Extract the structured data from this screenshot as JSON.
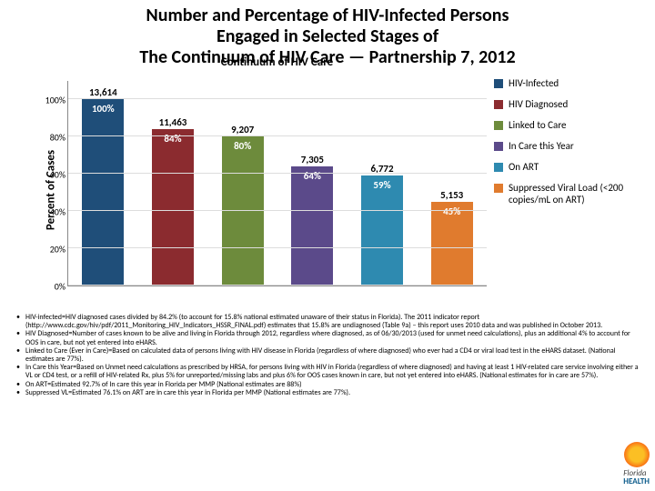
{
  "title_line1": "Number and Percentage of HIV-Infected Persons",
  "title_line2": "Engaged in Selected Stages of",
  "title_line3": "The Continuum of HIV Care — Partnership 7, 2012",
  "title_fontsize": 20,
  "yaxis_label": "Percent of Cases",
  "xaxis_label": "Continuum of HIV Care",
  "axis_label_fontsize": 13,
  "ylim": [
    0,
    110
  ],
  "ytick_positions": [
    0,
    20,
    40,
    60,
    80,
    100
  ],
  "ytick_labels": [
    "0%",
    "20%",
    "40%",
    "60%",
    "80%",
    "100%"
  ],
  "tick_fontsize": 10,
  "grid_color": "#dddddd",
  "background_color": "#ffffff",
  "bars": [
    {
      "value_label": "13,614",
      "pct_label": "100%",
      "pct": 100,
      "color": "#1f4e79"
    },
    {
      "value_label": "11,463",
      "pct_label": "84%",
      "pct": 84,
      "color": "#8b2b2f"
    },
    {
      "value_label": "9,207",
      "pct_label": "80%",
      "pct": 80,
      "color": "#6d8b3c"
    },
    {
      "value_label": "7,305",
      "pct_label": "64%",
      "pct": 64,
      "color": "#5b4a8a"
    },
    {
      "value_label": "6,772",
      "pct_label": "59%",
      "pct": 59,
      "color": "#2e8ab0"
    },
    {
      "value_label": "5,153",
      "pct_label": "45%",
      "pct": 45,
      "color": "#e07b2e"
    }
  ],
  "bar_value_fontsize": 11,
  "bar_tag_fontsize": 11,
  "legend_items": [
    {
      "label": "HIV-Infected",
      "color": "#1f4e79"
    },
    {
      "label": "HIV Diagnosed",
      "color": "#8b2b2f"
    },
    {
      "label": "Linked to Care",
      "color": "#6d8b3c"
    },
    {
      "label": "In Care this Year",
      "color": "#5b4a8a"
    },
    {
      "label": "On ART",
      "color": "#2e8ab0"
    },
    {
      "label": "Suppressed Viral Load (<200 copies/mL on ART)",
      "color": "#e07b2e"
    }
  ],
  "footnotes": [
    "HIV-infected=HIV diagnosed cases divided by 84.2% (to account for 15.8% national estimated unaware of their status in Florida). The 2011 indicator report (http://www.cdc.gov/hiv/pdf/2011_Monitoring_HIV_Indicators_HSSR_FINAL.pdf) estimates that 15.8% are undiagnosed (Table 9a) – this report uses 2010 data and was published in October 2013.",
    "HIV Diagnosed=Number of cases known to be alive and living in Florida through 2012, regardless where diagnosed, as of 06/30/2013 (used for unmet need calculations), plus an additional 4% to account for OOS in care, but not yet entered into eHARS.",
    "Linked to Care (Ever in Care)=Based on calculated data of persons living with HIV disease in Florida (regardless of where diagnosed) who ever had a CD4 or viral load test in the eHARS dataset. (National estimates are 77%).",
    "In Care this Year=Based on Unmet need calculations as prescribed by HRSA, for persons living with HIV in Florida (regardless of where diagnosed) and having at least 1 HIV-related care service involving either a VL or CD4 test, or a refill of HIV-related Rx, plus 5% for unreported/missing labs and plus 6% for OOS cases known in care, but not yet entered into eHARS. (National estimates for in care are 57%).",
    "On ART=Estimated 92.7% of In care this year in Florida per MMP (National estimates are 88%)",
    "Suppressed VL=Estimated 76.1% on ART are in care this year in Florida per MMP (National estimates are 77%)."
  ],
  "footnote_fontsize": 8,
  "logo_text1": "Florida",
  "logo_text2": "HEALTH"
}
